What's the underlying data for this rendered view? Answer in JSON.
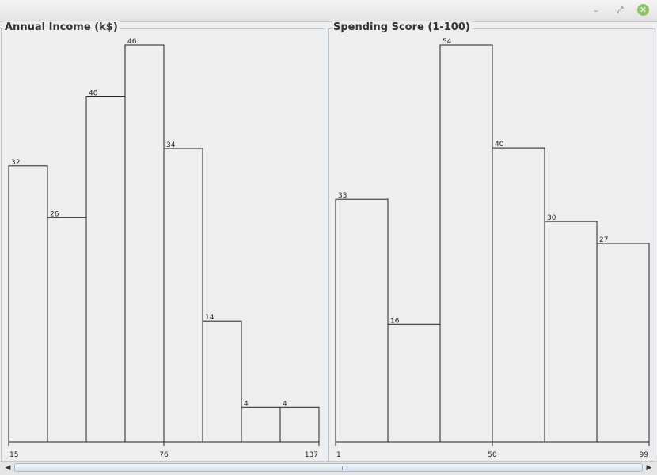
{
  "window": {
    "minimize_glyph": "–",
    "maximize_glyph": "⤢",
    "close_glyph": "✕",
    "close_color": "#8fc16a"
  },
  "scrollbar": {
    "left_arrow": "◀",
    "right_arrow": "▶"
  },
  "chart_data": [
    {
      "type": "bar",
      "title": "Annual Income (k$)",
      "bins": 8,
      "values": [
        32,
        26,
        40,
        46,
        34,
        14,
        4,
        4
      ],
      "x_ticks": [
        "15",
        "76",
        "137"
      ],
      "xlim": [
        15,
        137
      ],
      "ylim": [
        0,
        46
      ],
      "grid": false,
      "legend": "none",
      "bar_fill": "#eeeeee",
      "bar_stroke": "#222222"
    },
    {
      "type": "bar",
      "title": "Spending Score (1-100)",
      "bins": 6,
      "values": [
        33,
        16,
        54,
        40,
        30,
        27
      ],
      "x_ticks": [
        "1",
        "50",
        "99"
      ],
      "xlim": [
        1,
        99
      ],
      "ylim": [
        0,
        54
      ],
      "grid": false,
      "legend": "none",
      "bar_fill": "#eeeeee",
      "bar_stroke": "#222222"
    }
  ]
}
